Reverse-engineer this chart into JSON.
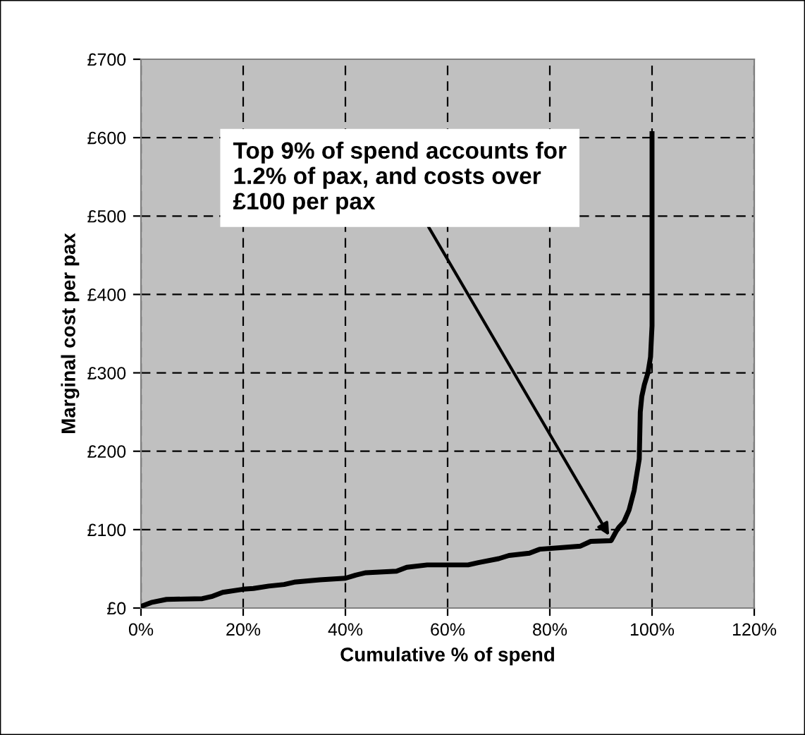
{
  "chart_data": {
    "type": "line",
    "xlabel": "Cumulative % of spend",
    "ylabel": "Marginal cost per pax",
    "x": [
      0,
      2,
      5,
      12,
      14,
      16,
      20,
      22,
      25,
      28,
      30,
      35,
      40,
      42,
      44,
      50,
      52,
      56,
      64,
      66,
      70,
      72,
      76,
      78,
      82,
      86,
      88,
      92,
      93,
      93.5,
      94.5,
      95.5,
      96.5,
      97,
      97.5,
      97.7,
      98,
      98.5,
      99.2,
      99.7,
      100,
      100
    ],
    "series": [
      {
        "color": "#000000",
        "values": [
          2,
          7,
          11,
          12,
          15,
          20,
          24,
          25,
          28,
          30,
          33,
          36,
          38,
          42,
          45,
          47,
          52,
          55,
          55,
          58,
          63,
          67,
          70,
          75,
          77,
          79,
          85,
          86,
          98,
          103,
          110,
          125,
          150,
          170,
          190,
          250,
          270,
          285,
          300,
          320,
          360,
          605
        ]
      }
    ],
    "xlim": [
      0,
      120
    ],
    "ylim": [
      0,
      700
    ],
    "xticks": [
      {
        "value": 0,
        "label": "0%"
      },
      {
        "value": 20,
        "label": "20%"
      },
      {
        "value": 40,
        "label": "40%"
      },
      {
        "value": 60,
        "label": "60%"
      },
      {
        "value": 80,
        "label": "80%"
      },
      {
        "value": 100,
        "label": "100%"
      },
      {
        "value": 120,
        "label": "120%"
      }
    ],
    "yticks": [
      {
        "value": 0,
        "label": "£0"
      },
      {
        "value": 100,
        "label": "£100"
      },
      {
        "value": 200,
        "label": "£200"
      },
      {
        "value": 300,
        "label": "£300"
      },
      {
        "value": 400,
        "label": "£400"
      },
      {
        "value": 500,
        "label": "£500"
      },
      {
        "value": 600,
        "label": "£600"
      },
      {
        "value": 700,
        "label": "£700"
      }
    ],
    "grid": true,
    "marker": "none",
    "line_style": "solid",
    "annotations": [
      {
        "text": "Top 9% of spend accounts for 1.2% of pax, and costs over £100 per pax",
        "x": 92,
        "y": 88
      }
    ]
  }
}
